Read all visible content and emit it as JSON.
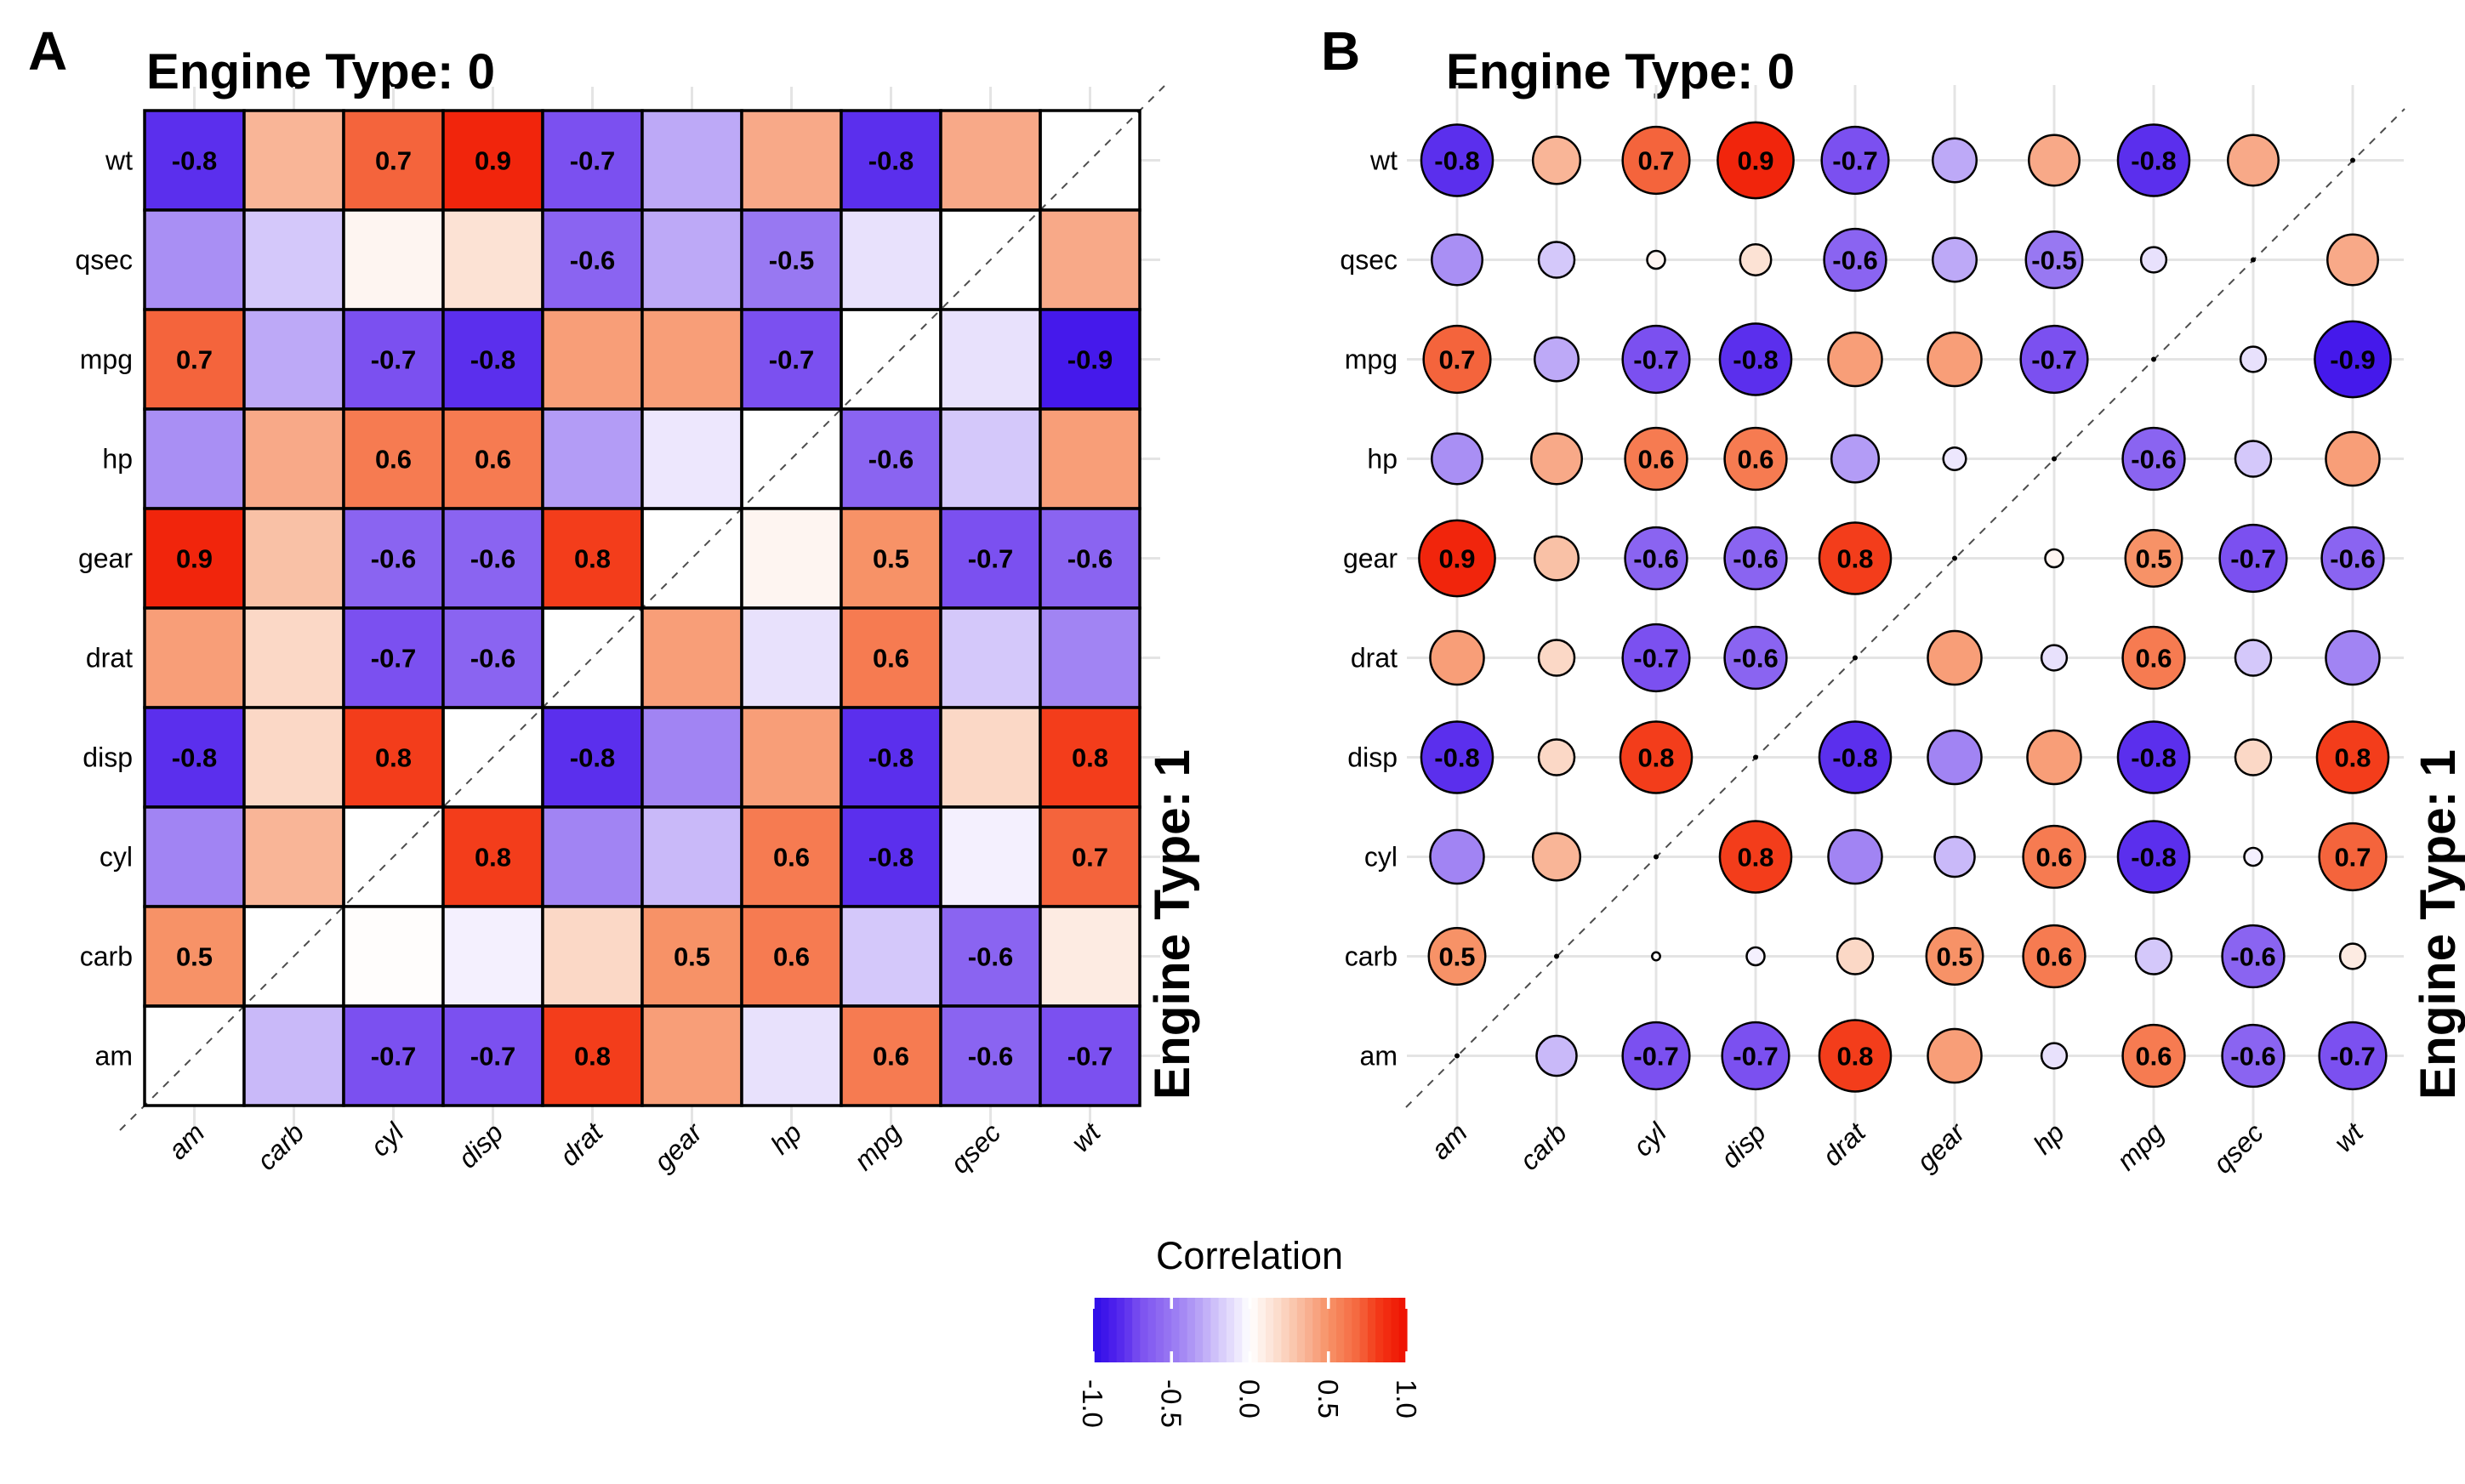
{
  "figure": {
    "panel_a_letter": "A",
    "panel_b_letter": "B",
    "background": "#FFFFFF"
  },
  "strips": {
    "top_title": "Engine Type: 0",
    "right_title": "Engine Type: 1"
  },
  "legend": {
    "title": "Correlation",
    "tick_labels": [
      "-1.0",
      "-0.5",
      "0.0",
      "0.5",
      "1.0"
    ],
    "tick_values": [
      -1,
      -0.5,
      0,
      0.5,
      1
    ],
    "min": -1,
    "max": 1
  },
  "color_scale": {
    "negative_anchors": [
      "#FFFFFF",
      "#E8E1FC",
      "#D4C8FA",
      "#BDA9F7",
      "#A98FF4",
      "#9878F2",
      "#8A64F1",
      "#7B50F0",
      "#5B2FED",
      "#4519EB",
      "#2A0BE8"
    ],
    "positive_anchors": [
      "#FFFFFF",
      "#FDEBE2",
      "#FBD8C6",
      "#F9C1A6",
      "#F8A988",
      "#F79267",
      "#F67B51",
      "#F4643C",
      "#F33D1B",
      "#F1250C",
      "#EE1000"
    ],
    "label_color_positive": "#000000",
    "label_color_negative": "#FFFFFF",
    "grid_color": "#E4E4E4",
    "tile_border": "#000000",
    "diagonal_dash_color": "#4D4D4D"
  },
  "chart_data": {
    "type": [
      "heatmap",
      "bubble-matrix"
    ],
    "x_categories": [
      "am",
      "carb",
      "cyl",
      "disp",
      "drat",
      "gear",
      "hp",
      "mpg",
      "qsec",
      "wt"
    ],
    "y_categories_top_to_bottom": [
      "wt",
      "qsec",
      "mpg",
      "hp",
      "gear",
      "drat",
      "disp",
      "cyl",
      "carb",
      "am"
    ],
    "facets": {
      "upper_left_triangle": "Engine Type: 0",
      "lower_right_triangle": "Engine Type: 1"
    },
    "label_threshold_abs": 0.5,
    "diagonal": null,
    "matrix_rows_top_to_bottom": {
      "wt": [
        -0.8,
        0.35,
        0.7,
        0.9,
        -0.7,
        -0.3,
        0.4,
        -0.8,
        0.4,
        null
      ],
      "qsec": [
        -0.4,
        -0.2,
        0.05,
        0.15,
        -0.6,
        -0.3,
        -0.5,
        -0.1,
        null,
        0.4
      ],
      "mpg": [
        0.7,
        -0.3,
        -0.7,
        -0.8,
        0.45,
        0.45,
        -0.7,
        null,
        -0.1,
        -0.9
      ],
      "hp": [
        -0.4,
        0.4,
        0.6,
        0.6,
        -0.35,
        -0.08,
        null,
        -0.6,
        -0.2,
        0.45
      ],
      "gear": [
        0.9,
        0.3,
        -0.6,
        -0.6,
        0.8,
        null,
        0.05,
        0.5,
        -0.7,
        -0.6
      ],
      "drat": [
        0.45,
        0.2,
        -0.7,
        -0.6,
        null,
        0.45,
        -0.1,
        0.6,
        -0.2,
        -0.45
      ],
      "disp": [
        -0.8,
        0.2,
        0.8,
        null,
        -0.8,
        -0.45,
        0.45,
        -0.8,
        0.2,
        0.8
      ],
      "cyl": [
        -0.45,
        0.35,
        null,
        0.8,
        -0.45,
        -0.25,
        0.6,
        -0.8,
        -0.05,
        0.7
      ],
      "carb": [
        0.5,
        null,
        0.01,
        -0.05,
        0.2,
        0.5,
        0.6,
        -0.2,
        -0.6,
        0.1
      ],
      "am": [
        null,
        -0.25,
        -0.7,
        -0.7,
        0.8,
        0.45,
        -0.1,
        0.6,
        -0.6,
        -0.7
      ]
    },
    "panels": [
      {
        "id": "A",
        "style": "heatmap",
        "title": "Engine Type: 0",
        "right_label": "Engine Type: 1"
      },
      {
        "id": "B",
        "style": "bubble",
        "size_encoding": "radius proportional to sqrt(|r|)",
        "title": "Engine Type: 0",
        "right_label": "Engine Type: 1"
      }
    ]
  }
}
